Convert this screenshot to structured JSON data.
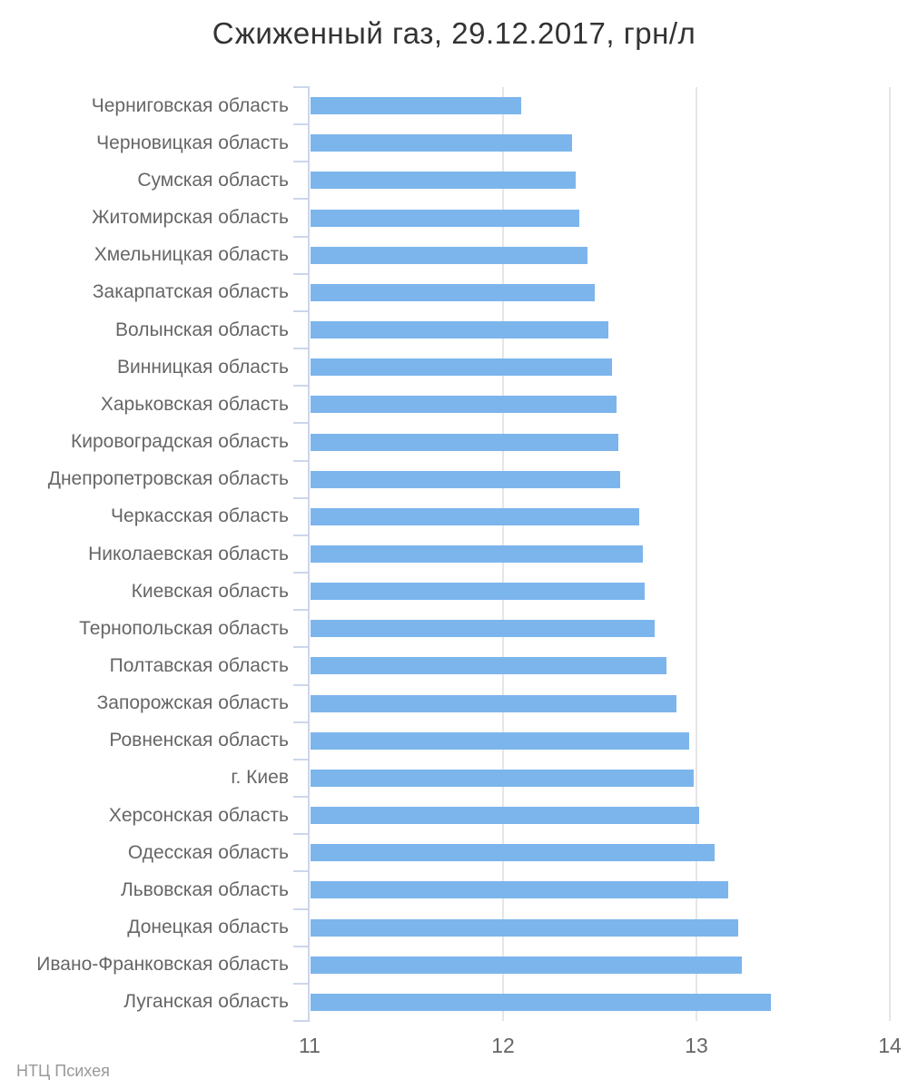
{
  "header": {
    "title": "Сжиженный газ, 29.12.2017, грн/л"
  },
  "footer": {
    "credit": "НТЦ Психея"
  },
  "chart_data": {
    "type": "bar",
    "orientation": "horizontal",
    "title": "Сжиженный газ, 29.12.2017, грн/л",
    "categories": [
      "Черниговская область",
      "Черновицкая область",
      "Сумская область",
      "Житомирская область",
      "Хмельницкая область",
      "Закарпатская область",
      "Волынская область",
      "Винницкая область",
      "Харьковская область",
      "Кировоградская область",
      "Днепропетровская область",
      "Черкасская область",
      "Николаевская область",
      "Киевская область",
      "Тернопольская область",
      "Полтавская область",
      "Запорожская область",
      "Ровненская область",
      "г. Киев",
      "Херсонская область",
      "Одесская область",
      "Львовская область",
      "Донецкая область",
      "Ивано-Франковская область",
      "Луганская область"
    ],
    "values": [
      12.09,
      12.35,
      12.37,
      12.39,
      12.43,
      12.47,
      12.54,
      12.56,
      12.58,
      12.59,
      12.6,
      12.7,
      12.72,
      12.73,
      12.78,
      12.84,
      12.89,
      12.96,
      12.98,
      13.01,
      13.09,
      13.16,
      13.21,
      13.23,
      13.38
    ],
    "xlabel": "",
    "ylabel": "",
    "xlim": [
      11,
      14
    ],
    "xticks": [
      11,
      12,
      13,
      14
    ],
    "grid": true,
    "legend": false,
    "unit": "грн/л",
    "bar_color": "#7cb5ec",
    "axis_color": "#ccd6eb",
    "grid_color": "#e6e6e6",
    "title_color": "#333333",
    "label_color": "#666666",
    "credit_color": "#999999",
    "credit": "НТЦ Психея"
  }
}
